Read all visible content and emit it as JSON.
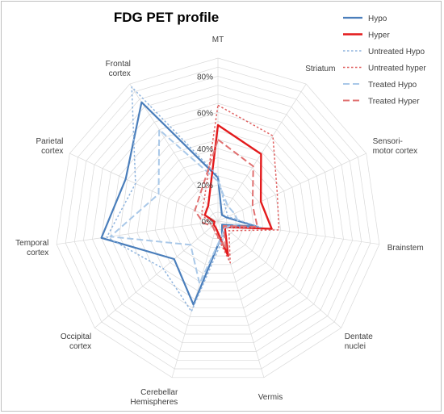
{
  "chart_data": {
    "type": "radar",
    "title": "FDG PET profile",
    "categories": [
      "MT",
      "Striatum",
      "Sensori-\nmotor cortex",
      "Brainstem",
      "Dentate\nnuclei",
      "Vermis",
      "Cerebellar\nHemispheres",
      "Occipital\ncortex",
      "Temporal\ncortex",
      "Parietal\ncortex",
      "Frontal\ncortex"
    ],
    "rlim": [
      0,
      90
    ],
    "rticks": [
      0,
      20,
      40,
      60,
      80
    ],
    "rtick_labels": [
      "0%",
      "20%",
      "40%",
      "60%",
      "80%"
    ],
    "grid": true,
    "legend_position": "top-right",
    "series": [
      {
        "name": "Hypo",
        "color": "#4a7ebb",
        "dash": "solid",
        "width": 2.2,
        "values": [
          24,
          4,
          5,
          22,
          3,
          8,
          48,
          32,
          65,
          56,
          78
        ]
      },
      {
        "name": "Hyper",
        "color": "#e31a1c",
        "dash": "solid",
        "width": 2.4,
        "values": [
          53,
          44,
          26,
          30,
          5,
          20,
          4,
          3,
          2,
          8,
          10
        ]
      },
      {
        "name": "Untreated Hypo",
        "color": "#8fb4de",
        "dash": "dot",
        "width": 1.5,
        "values": [
          25,
          8,
          6,
          24,
          5,
          10,
          52,
          40,
          62,
          50,
          88
        ]
      },
      {
        "name": "Untreated hyper",
        "color": "#e06060",
        "dash": "dot",
        "width": 1.5,
        "values": [
          64,
          56,
          36,
          34,
          8,
          24,
          6,
          4,
          5,
          10,
          14
        ]
      },
      {
        "name": "Treated Hypo",
        "color": "#a9c8e8",
        "dash": "dash",
        "width": 2.0,
        "values": [
          22,
          10,
          10,
          12,
          5,
          8,
          36,
          20,
          60,
          36,
          60
        ]
      },
      {
        "name": "Treated Hyper",
        "color": "#e07070",
        "dash": "dash",
        "width": 2.0,
        "values": [
          45,
          36,
          21,
          22,
          4,
          16,
          6,
          4,
          8,
          14,
          18
        ]
      }
    ]
  }
}
